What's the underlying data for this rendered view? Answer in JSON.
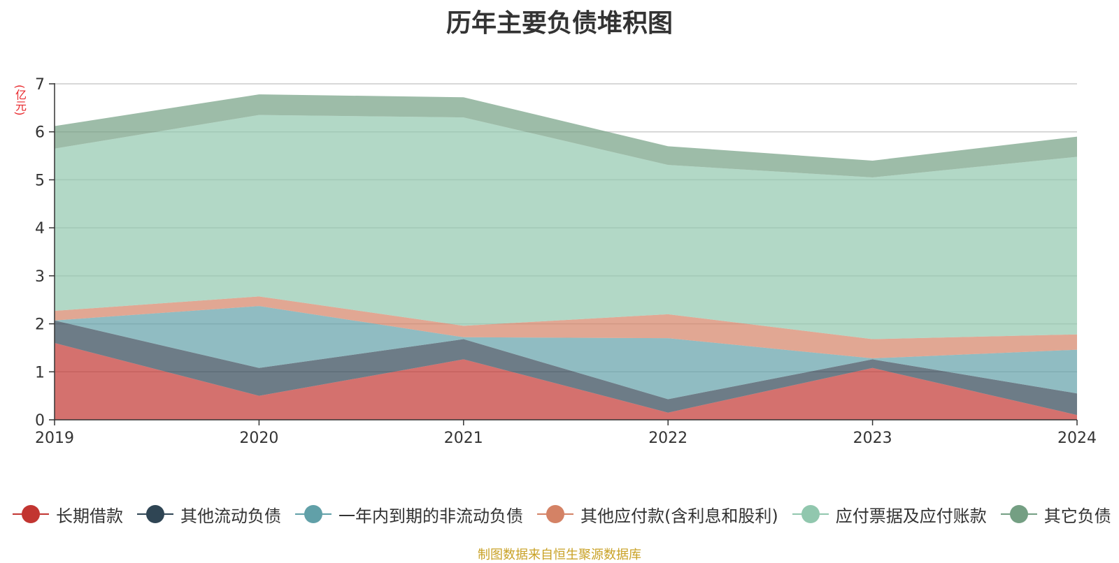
{
  "chart_data": {
    "type": "area",
    "stacked": true,
    "title": "历年主要负债堆积图",
    "ylabel": "(亿元)",
    "xlabel": "",
    "categories": [
      "2019",
      "2020",
      "2021",
      "2022",
      "2023",
      "2024"
    ],
    "ylim": [
      0,
      7
    ],
    "yticks": [
      "0",
      "1",
      "2",
      "3",
      "4",
      "5",
      "6",
      "7"
    ],
    "grid": true,
    "legend_position": "bottom",
    "series": [
      {
        "name": "长期借款",
        "color": "#c23531",
        "values": [
          1.6,
          0.5,
          1.26,
          0.15,
          1.08,
          0.1
        ]
      },
      {
        "name": "其他流动负债",
        "color": "#2f4554",
        "values": [
          0.47,
          0.58,
          0.42,
          0.28,
          0.18,
          0.45
        ]
      },
      {
        "name": "一年内到期的非流动负债",
        "color": "#61a0a8",
        "values": [
          0.0,
          1.29,
          0.04,
          1.27,
          0.02,
          0.91
        ]
      },
      {
        "name": "其他应付款(含利息和股利)",
        "color": "#d48265",
        "values": [
          0.2,
          0.2,
          0.24,
          0.5,
          0.4,
          0.32
        ]
      },
      {
        "name": "应付票据及应付账款",
        "color": "#91c7ae",
        "values": [
          3.38,
          3.78,
          4.34,
          3.11,
          3.37,
          3.7
        ]
      },
      {
        "name": "其它负债",
        "color": "#749f83",
        "values": [
          0.47,
          0.43,
          0.42,
          0.39,
          0.35,
          0.42
        ]
      }
    ],
    "source_note": "制图数据来自恒生聚源数据库"
  }
}
